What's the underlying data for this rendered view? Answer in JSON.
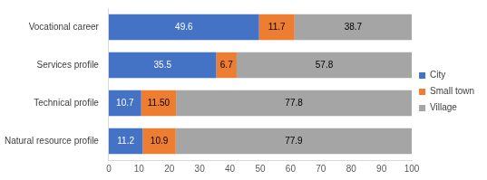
{
  "chart_data": {
    "type": "bar",
    "orientation": "horizontal",
    "stacked": true,
    "categories": [
      "Vocational career",
      "Services profile",
      "Technical profile",
      "Natural resource profile"
    ],
    "series": [
      {
        "name": "City",
        "color": "#4472c4",
        "values": [
          49.6,
          35.5,
          10.7,
          11.2
        ]
      },
      {
        "name": "Small town",
        "color": "#ed7d31",
        "values": [
          11.7,
          6.7,
          11.5,
          10.9
        ],
        "value_labels": [
          "11.7",
          "6.7",
          "11.50",
          "10.9"
        ]
      },
      {
        "name": "Village",
        "color": "#a5a5a5",
        "values": [
          38.7,
          57.8,
          77.8,
          77.9
        ]
      }
    ],
    "xlim": [
      0,
      100
    ],
    "xticks": [
      0,
      10,
      20,
      30,
      40,
      50,
      60,
      70,
      80,
      90,
      100
    ],
    "grid": false,
    "legend": "right",
    "data_labels": true
  }
}
